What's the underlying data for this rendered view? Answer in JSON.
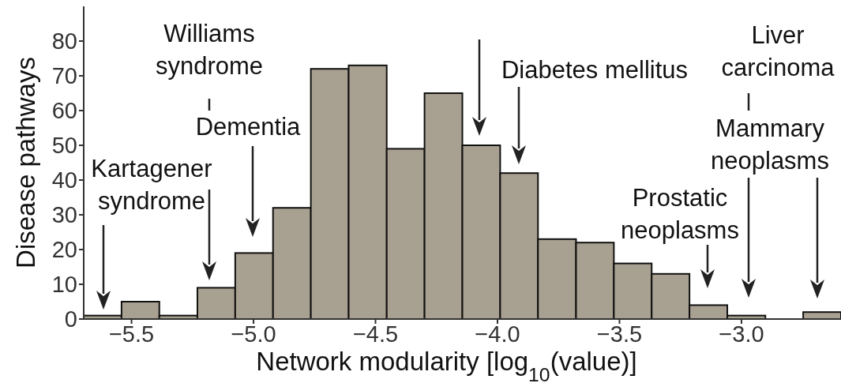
{
  "chart_data": {
    "type": "histogram",
    "xlabel": "Network modularity [log$_{10}$(value)]",
    "ylabel": "Disease pathways",
    "bins": [
      -5.696,
      -5.541,
      -5.386,
      -5.23,
      -5.075,
      -4.92,
      -4.765,
      -4.61,
      -4.454,
      -4.299,
      -4.144,
      -3.989,
      -3.834,
      -3.678,
      -3.523,
      -3.368,
      -3.213,
      -3.058,
      -2.902,
      -2.747,
      -2.592
    ],
    "values": [
      1,
      5,
      1,
      9,
      19,
      32,
      72,
      73,
      49,
      65,
      50,
      42,
      23,
      22,
      16,
      13,
      4,
      1,
      0,
      2
    ],
    "color": "#a8a090",
    "xlim": [
      -5.696,
      -2.592
    ],
    "xticks": [
      {
        "value": -5.5,
        "label": "−5.5"
      },
      {
        "value": -5.0,
        "label": "−5.0"
      },
      {
        "value": -4.5,
        "label": "−4.5"
      },
      {
        "value": -4.0,
        "label": "−4.0"
      },
      {
        "value": -3.5,
        "label": "−3.5"
      },
      {
        "value": -3.0,
        "label": "−3.0"
      }
    ],
    "ylim": [
      0,
      90
    ],
    "yticks": [
      0,
      10,
      20,
      30,
      40,
      50,
      60,
      70,
      80
    ],
    "annotations": [
      "Kartagener\nsyndrome",
      "Williams\nsyndrome",
      "Dementia",
      "Diabetes mellitus",
      "Prostatic\nneoplasms",
      "Liver\ncarcinoma",
      "Mammary\nneoplasms"
    ]
  }
}
